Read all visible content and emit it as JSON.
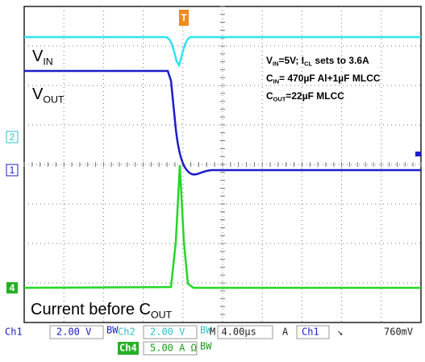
{
  "trace_labels": {
    "vin": [
      {
        "text": "V"
      },
      {
        "text": "IN",
        "sub": true
      }
    ],
    "vout": [
      {
        "text": "V"
      },
      {
        "text": "OUT",
        "sub": true
      }
    ],
    "current": [
      {
        "text": "Current before C"
      },
      {
        "text": "OUT",
        "sub": true
      }
    ]
  },
  "notes": [
    [
      {
        "text": "V"
      },
      {
        "text": "IN",
        "sub": true
      },
      {
        "text": "=5V; I"
      },
      {
        "text": "CL",
        "sub": true
      },
      {
        "text": " sets to 3.6A"
      }
    ],
    [
      {
        "text": "C"
      },
      {
        "text": "IN",
        "sub": true
      },
      {
        "text": "= 470µF Al+1µF MLCC"
      }
    ],
    [
      {
        "text": "C"
      },
      {
        "text": "OUT",
        "sub": true
      },
      {
        "text": "=22µF MLCC"
      }
    ]
  ],
  "markers": {
    "trigger": "T",
    "ch2": "2",
    "ch1": "1",
    "ch4": "4"
  },
  "status": {
    "ch1": "Ch1",
    "ch1_scale": "2.00 V",
    "ch1_bw": "BW",
    "ch2": "Ch2",
    "ch2_scale": "2.00 V",
    "ch2_bw": "BW",
    "timebase": "M 4.00µs",
    "acq": "A",
    "trig_source": "Ch1",
    "trig_slope": "↘",
    "trig_level": "760mV",
    "ch4": "Ch4",
    "ch4_scale": "5.00 A Ω",
    "ch4_bw": "BW"
  }
}
